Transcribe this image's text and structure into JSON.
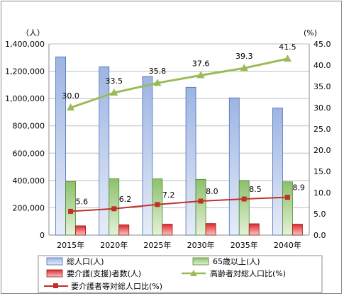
{
  "chart_data": {
    "type": "bar",
    "categories": [
      "2015年",
      "2020年",
      "2025年",
      "2030年",
      "2035年",
      "2040年"
    ],
    "left_axis": {
      "unit_label": "（人）",
      "min": 0,
      "max": 1400000,
      "step": 200000,
      "tick_labels": [
        "0",
        "200,000",
        "400,000",
        "600,000",
        "800,000",
        "1,000,000",
        "1,200,000",
        "1,400,000"
      ]
    },
    "right_axis": {
      "unit_label": "(%)",
      "min": 0,
      "max": 45,
      "step": 5,
      "tick_labels": [
        "0.0",
        "5.0",
        "10.0",
        "15.0",
        "20.0",
        "25.0",
        "30.0",
        "35.0",
        "40.0",
        "45.0"
      ]
    },
    "grid": true,
    "legend_position": "bottom",
    "series": [
      {
        "name": "総人口(人)",
        "type": "bar",
        "axis": "left",
        "color": "#8eaadb",
        "values": [
          1305000,
          1233000,
          1162000,
          1082000,
          1005000,
          931000
        ]
      },
      {
        "name": "65歳以上(人)",
        "type": "bar",
        "axis": "left",
        "color": "#92c46b",
        "values": [
          392000,
          413000,
          412000,
          408000,
          400000,
          390000
        ]
      },
      {
        "name": "要介護(支援)者数(人)",
        "type": "bar",
        "axis": "left",
        "color": "#e03030",
        "values": [
          68000,
          75000,
          80000,
          85000,
          83000,
          80000
        ]
      },
      {
        "name": "高齢者対総人口比(%)",
        "type": "line",
        "axis": "right",
        "color": "#9bbb59",
        "marker": "triangle",
        "values": [
          30.0,
          33.5,
          35.8,
          37.6,
          39.3,
          41.5
        ],
        "data_labels": [
          "30.0",
          "33.5",
          "35.8",
          "37.6",
          "39.3",
          "41.5"
        ]
      },
      {
        "name": "要介護者等対総人口比(%)",
        "type": "line",
        "axis": "right",
        "color": "#c0302a",
        "marker": "square",
        "values": [
          5.6,
          6.2,
          7.2,
          8.0,
          8.5,
          8.9
        ],
        "data_labels": [
          "5.6",
          "6.2",
          "7.2",
          "8.0",
          "8.5",
          "8.9"
        ]
      }
    ]
  }
}
